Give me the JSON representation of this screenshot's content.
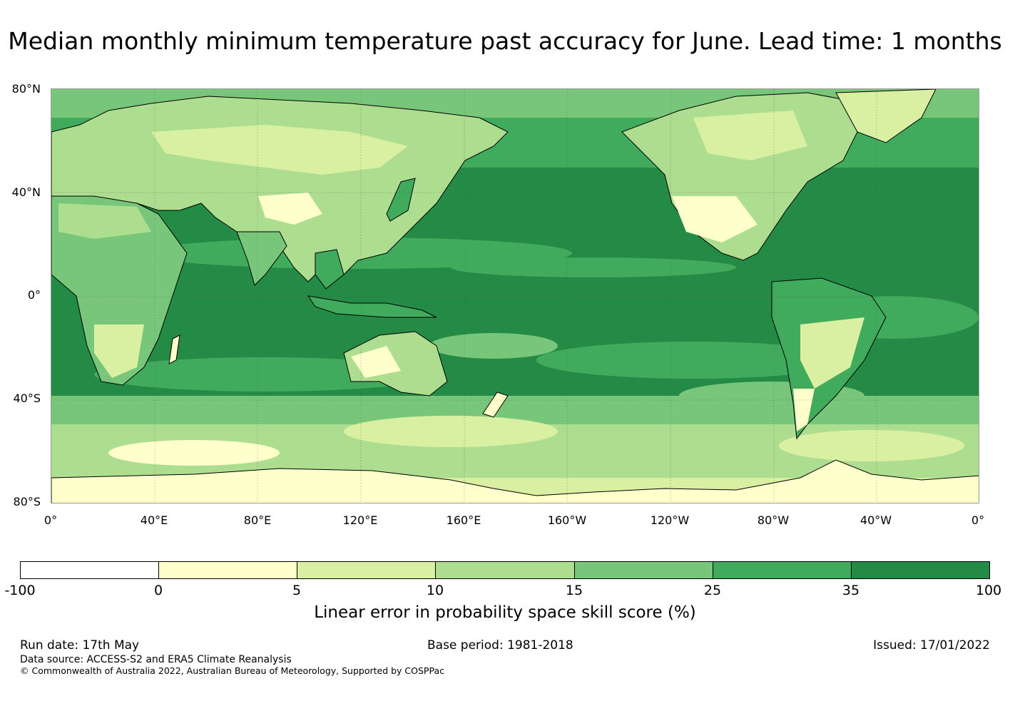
{
  "title": "Median monthly minimum temperature past accuracy for June. Lead time: 1 months",
  "map": {
    "lat_labels": [
      "80°N",
      "40°N",
      "0°",
      "40°S",
      "80°S"
    ],
    "lon_labels": [
      "0°",
      "40°E",
      "80°E",
      "120°E",
      "160°E",
      "160°W",
      "120°W",
      "80°W",
      "40°W",
      "0°"
    ]
  },
  "colorbar": {
    "title": "Linear error in probability space skill score (%)",
    "ticks": [
      "-100",
      "0",
      "5",
      "10",
      "15",
      "25",
      "35",
      "100"
    ],
    "colors": [
      "#ffffff",
      "#ffffcc",
      "#d9f0a3",
      "#addd8e",
      "#78c679",
      "#41ab5d",
      "#238b45"
    ]
  },
  "footer": {
    "run_date": "Run date: 17th May",
    "base_period": "Base period: 1981-2018",
    "issued": "Issued: 17/01/2022",
    "data_source": "Data source: ACCESS-S2 and ERA5 Climate Reanalysis",
    "copyright": "© Commonwealth of Australia 2022, Australian Bureau of Meteorology, Supported by COSPPac"
  }
}
